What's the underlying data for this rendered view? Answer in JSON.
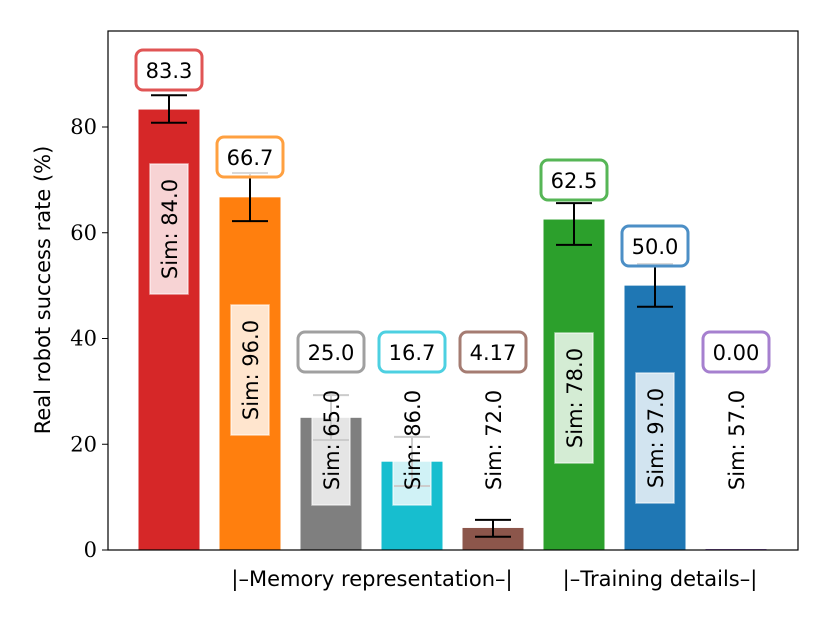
{
  "chart_data": {
    "type": "bar",
    "title": "",
    "ylabel": "Real robot success rate (%)",
    "xlabel": "",
    "group_labels": [
      "|–Memory representation–|",
      "|–Training details–|"
    ],
    "ylim": [
      0,
      98.2
    ],
    "yticks": [
      0,
      20,
      40,
      60,
      80
    ],
    "grid": false,
    "values": [
      83.3,
      66.7,
      25.0,
      16.7,
      4.17,
      62.5,
      50.0,
      0.0
    ],
    "value_labels": [
      "83.3",
      "66.7",
      "25.0",
      "16.7",
      "4.17",
      "62.5",
      "50.0",
      "0.00"
    ],
    "error_low": [
      80.8,
      62.2,
      20.8,
      12.1,
      2.5,
      57.7,
      46.0,
      0
    ],
    "error_high": [
      86.0,
      71.3,
      29.3,
      21.4,
      5.7,
      65.6,
      54.1,
      0
    ],
    "sim_values": [
      84.0,
      96.0,
      65.0,
      86.0,
      72.0,
      78.0,
      97.0,
      57.0
    ],
    "sim_labels": [
      "Sim: 84.0",
      "Sim: 96.0",
      "Sim: 65.0",
      "Sim: 86.0",
      "Sim: 72.0",
      "Sim: 78.0",
      "Sim: 97.0",
      "Sim: 57.0"
    ],
    "colors": [
      "#d62728",
      "#ff7f0e",
      "#7f7f7f",
      "#17becf",
      "#8c564b",
      "#2ca02c",
      "#1f77b4",
      "#9467bd"
    ],
    "label_edge_colors": [
      "#e05555",
      "#ffa040",
      "#a0a0a0",
      "#4dd0e1",
      "#a57c72",
      "#56b656",
      "#4c8fc6",
      "#a680cf"
    ]
  }
}
